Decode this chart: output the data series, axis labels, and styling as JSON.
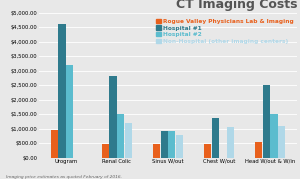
{
  "title": "CT Imaging Costs",
  "categories": [
    "Urogram",
    "Renal Colic",
    "Sinus W/out",
    "Chest W/out",
    "Head W/out & W/in"
  ],
  "series": {
    "Rogue Valley Physicians Lab & Imaging": [
      950,
      450,
      480,
      480,
      550
    ],
    "Hospital #1": [
      4600,
      2800,
      900,
      1350,
      2500
    ],
    "Hospital #2": [
      3200,
      1500,
      900,
      0,
      1500
    ],
    "Non-Hospital (other imaging centers)": [
      0,
      1200,
      780,
      1050,
      1100
    ]
  },
  "colors": {
    "Rogue Valley Physicians Lab & Imaging": "#E8601C",
    "Hospital #1": "#2E7A8C",
    "Hospital #2": "#5BBCCE",
    "Non-Hospital (other imaging centers)": "#B0D8E8"
  },
  "ylim": [
    0,
    5000
  ],
  "ytick_step": 500,
  "footnote": "Imaging price estimates as quoted February of 2016.",
  "background_color": "#e8e8e8",
  "plot_bg_color": "#e8e8e8",
  "title_fontsize": 9,
  "legend_fontsize": 4.2,
  "tick_fontsize": 3.8,
  "bar_width": 0.14,
  "bar_gap": 0.01
}
